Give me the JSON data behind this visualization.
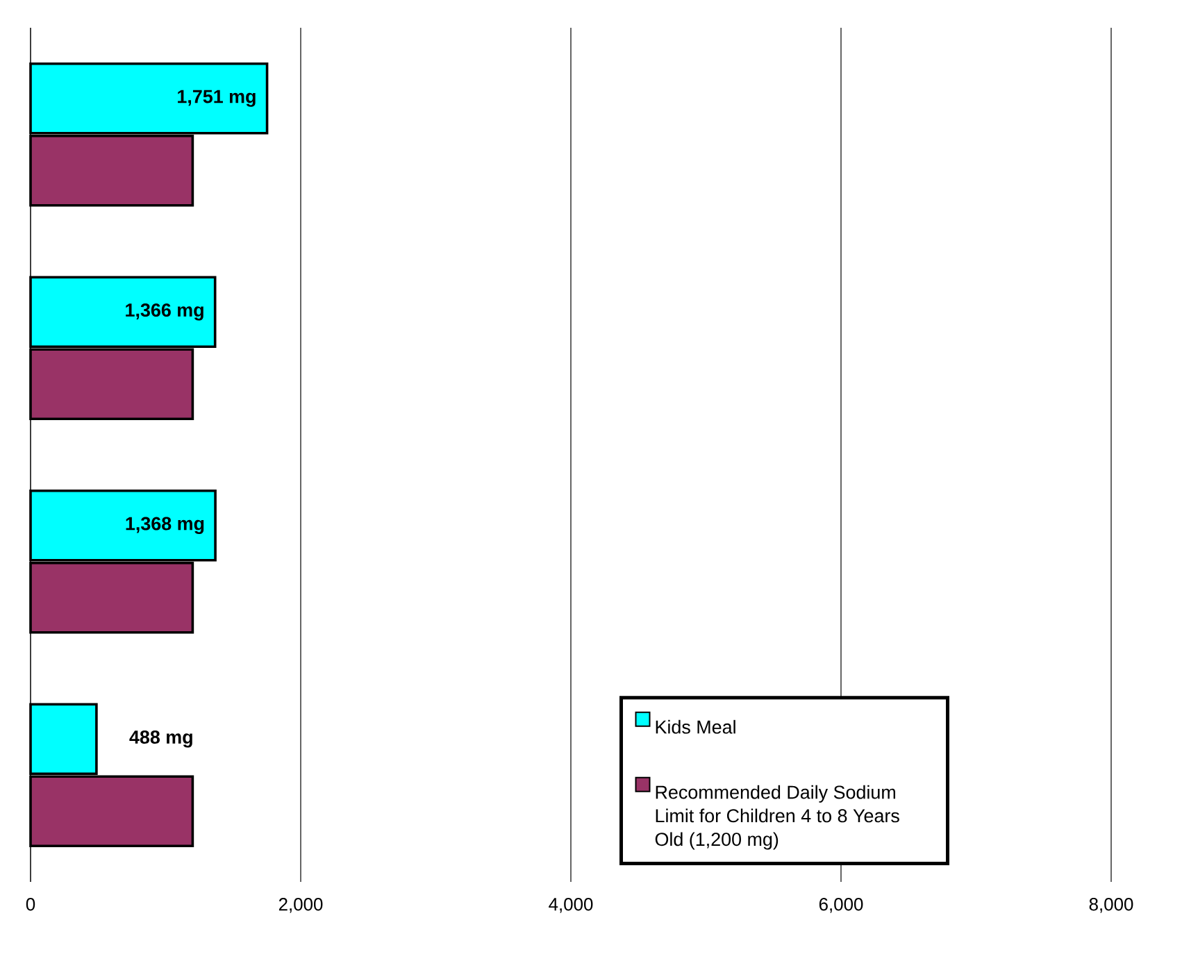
{
  "chart_data": {
    "type": "bar",
    "orientation": "horizontal",
    "categories": [
      null,
      null,
      null,
      null
    ],
    "series": [
      {
        "name": "Kids Meal",
        "color": "#00ffff",
        "values": [
          1751,
          1366,
          1368,
          488
        ],
        "value_labels": [
          "1,751 mg",
          "1,366 mg",
          "1,368 mg",
          "488 mg"
        ]
      },
      {
        "name": "Recommended Daily Sodium Limit for Children 4 to 8 Years Old (1,200 mg)",
        "color": "#993366",
        "values": [
          1200,
          1200,
          1200,
          1200
        ]
      }
    ],
    "xlim": [
      0,
      8000
    ],
    "xticks": [
      0,
      {
        "value": 2000,
        "label": "2,000"
      },
      {
        "value": 4000,
        "label": "4,000"
      },
      {
        "value": 6000,
        "label": "6,000"
      },
      {
        "value": 8000,
        "label": "8,000"
      }
    ],
    "grid": "x",
    "legend": "bottom right"
  }
}
